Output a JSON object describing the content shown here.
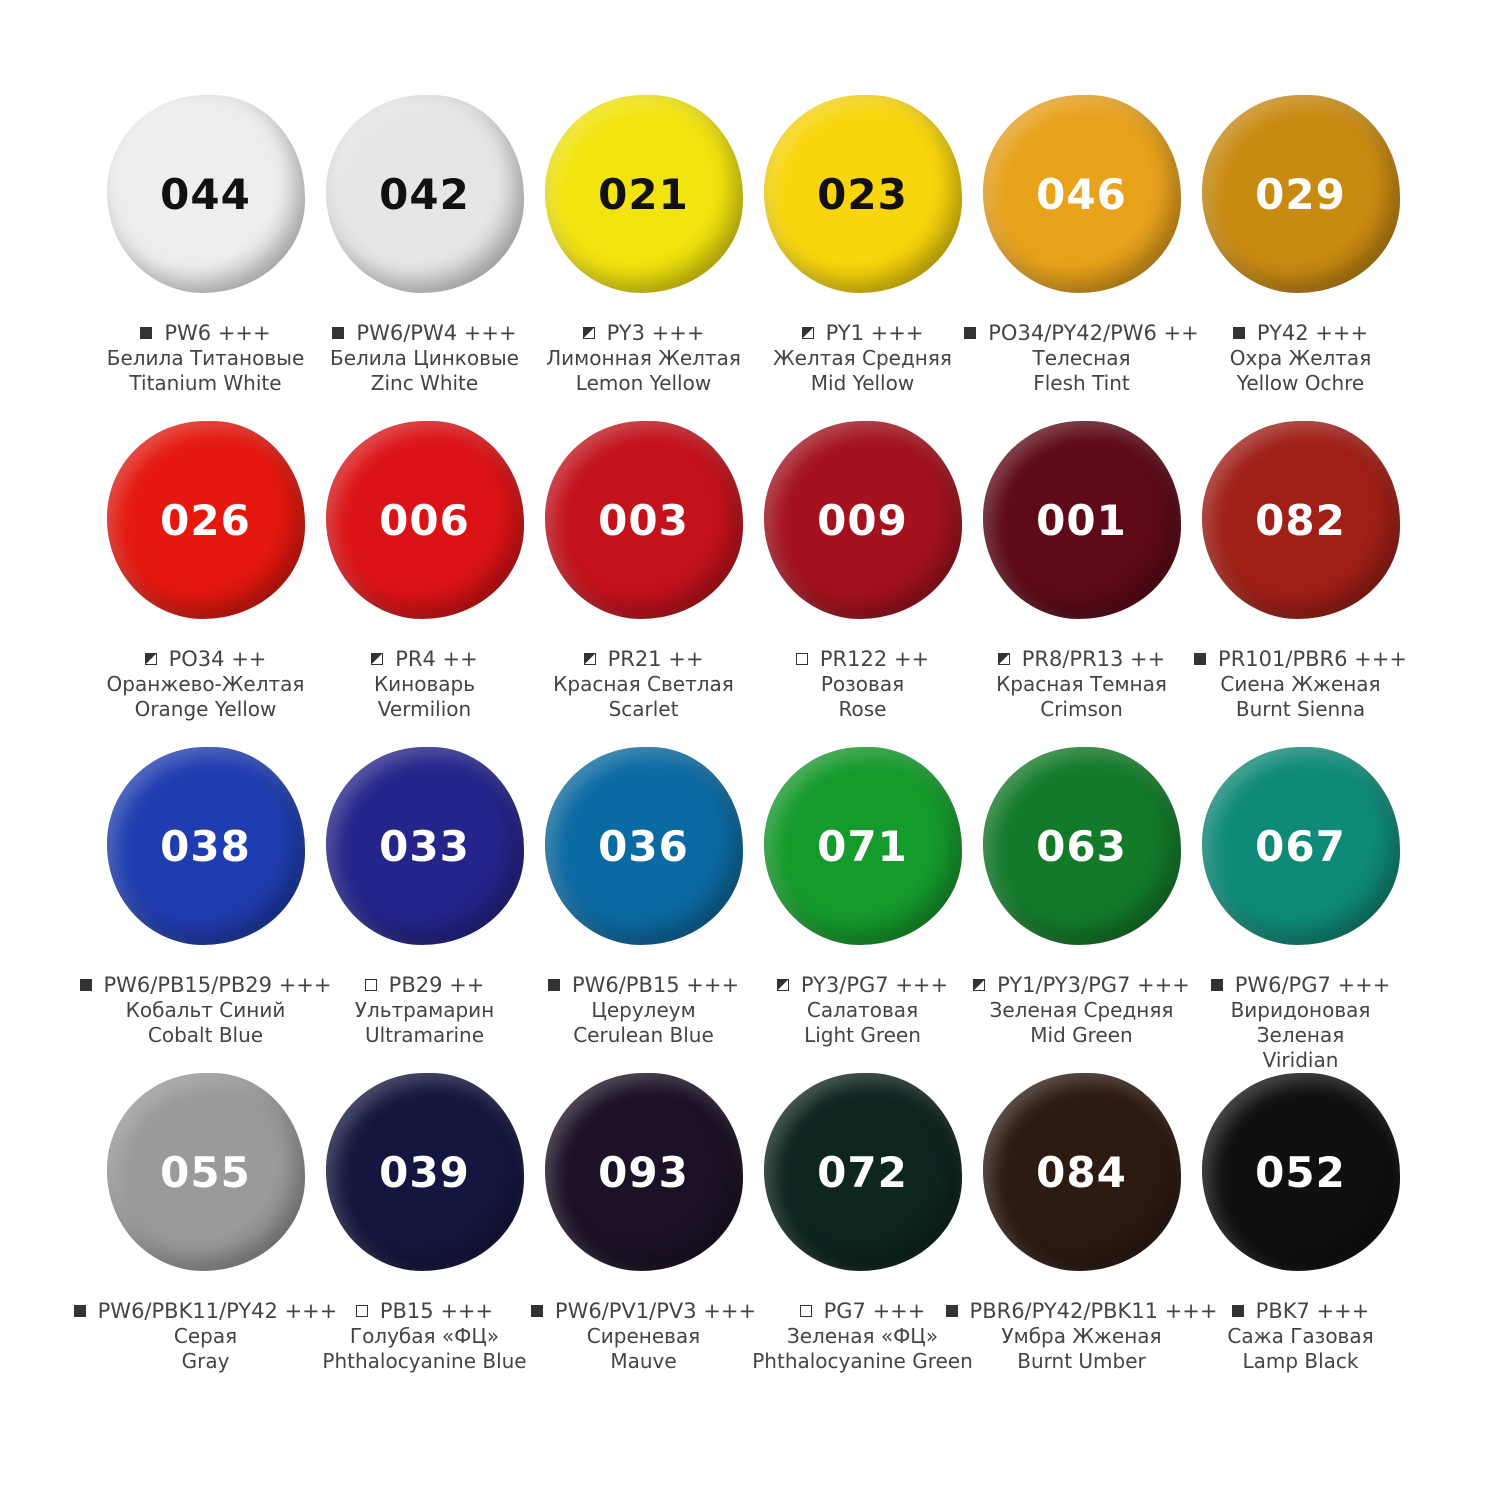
{
  "swatches": [
    {
      "code": "044",
      "pigment": "PW6 +++",
      "opacity": "opaque",
      "ru": "Белила Титановые",
      "en": "Titanium White",
      "color": "#eeeeee",
      "text_color": "#111111"
    },
    {
      "code": "042",
      "pigment": "PW6/PW4 +++",
      "opacity": "opaque",
      "ru": "Белила Цинковые",
      "en": "Zinc White",
      "color": "#e4e6e8",
      "text_color": "#111111"
    },
    {
      "code": "021",
      "pigment": "PY3 +++",
      "opacity": "semi",
      "ru": "Лимонная Желтая",
      "en": "Lemon Yellow",
      "color": "#f2e40e",
      "text_color": "#111111"
    },
    {
      "code": "023",
      "pigment": "PY1 +++",
      "opacity": "semi",
      "ru": "Желтая Средняя",
      "en": "Mid Yellow",
      "color": "#f8d50c",
      "text_color": "#111111"
    },
    {
      "code": "046",
      "pigment": "PO34/PY42/PW6 ++",
      "opacity": "opaque",
      "ru": "Телесная",
      "en": "Flesh Tint",
      "color": "#e8a21c",
      "text_color": "#ffffff"
    },
    {
      "code": "029",
      "pigment": "PY42 +++",
      "opacity": "opaque",
      "ru": "Охра Желтая",
      "en": "Yellow Ochre",
      "color": "#c98a12",
      "text_color": "#ffffff"
    },
    {
      "code": "026",
      "pigment": "PO34 ++",
      "opacity": "semi",
      "ru": "Оранжево-Желтая",
      "en": "Orange Yellow",
      "color": "#e4180f",
      "text_color": "#ffffff"
    },
    {
      "code": "006",
      "pigment": "PR4 ++",
      "opacity": "semi",
      "ru": "Киноварь",
      "en": "Vermilion",
      "color": "#dc1316",
      "text_color": "#ffffff"
    },
    {
      "code": "003",
      "pigment": "PR21 ++",
      "opacity": "semi",
      "ru": "Красная Светлая",
      "en": "Scarlet",
      "color": "#c3121b",
      "text_color": "#ffffff"
    },
    {
      "code": "009",
      "pigment": "PR122 ++",
      "opacity": "transparent",
      "ru": "Розовая",
      "en": "Rose",
      "color": "#a3121e",
      "text_color": "#ffffff"
    },
    {
      "code": "001",
      "pigment": "PR8/PR13 ++",
      "opacity": "semi",
      "ru": "Красная Темная",
      "en": "Crimson",
      "color": "#5e0a18",
      "text_color": "#ffffff"
    },
    {
      "code": "082",
      "pigment": "PR101/PBR6 +++",
      "opacity": "opaque",
      "ru": "Сиена Жженая",
      "en": "Burnt Sienna",
      "color": "#a01f16",
      "text_color": "#ffffff"
    },
    {
      "code": "038",
      "pigment": "PW6/PB15/PB29 +++",
      "opacity": "opaque",
      "ru": "Кобальт Синий",
      "en": "Cobalt Blue",
      "color": "#1f3db0",
      "text_color": "#ffffff"
    },
    {
      "code": "033",
      "pigment": "PB29 ++",
      "opacity": "transparent",
      "ru": "Ультрамарин",
      "en": "Ultramarine",
      "color": "#25248a",
      "text_color": "#ffffff"
    },
    {
      "code": "036",
      "pigment": "PW6/PB15 +++",
      "opacity": "opaque",
      "ru": "Церулеум",
      "en": "Cerulean Blue",
      "color": "#0c6aa2",
      "text_color": "#ffffff"
    },
    {
      "code": "071",
      "pigment": "PY3/PG7 +++",
      "opacity": "semi",
      "ru": "Салатовая",
      "en": "Light Green",
      "color": "#159a2c",
      "text_color": "#ffffff"
    },
    {
      "code": "063",
      "pigment": "PY1/PY3/PG7 +++",
      "opacity": "semi",
      "ru": "Зеленая Средняя",
      "en": "Mid Green",
      "color": "#137a2a",
      "text_color": "#ffffff"
    },
    {
      "code": "067",
      "pigment": "PW6/PG7 +++",
      "opacity": "opaque",
      "ru": "Виридоновая Зеленая",
      "en": "Viridian",
      "ru_lines": [
        "Виридоновая",
        "Зеленая"
      ],
      "color": "#0f8a78",
      "text_color": "#ffffff"
    },
    {
      "code": "055",
      "pigment": "PW6/PBK11/PY42 +++",
      "opacity": "opaque",
      "ru": "Серая",
      "en": "Gray",
      "color": "#9a9a9a",
      "text_color": "#ffffff"
    },
    {
      "code": "039",
      "pigment": "PB15 +++",
      "opacity": "transparent",
      "ru": "Голубая «ФЦ»",
      "en": "Phthalocyanine Blue",
      "color": "#15163f",
      "text_color": "#ffffff"
    },
    {
      "code": "093",
      "pigment": "PW6/PV1/PV3 +++",
      "opacity": "opaque",
      "ru": "Сиреневая",
      "en": "Mauve",
      "color": "#1c1126",
      "text_color": "#ffffff"
    },
    {
      "code": "072",
      "pigment": "PG7 +++",
      "opacity": "transparent",
      "ru": "Зеленая «ФЦ»",
      "en": "Phthalocyanine Green",
      "color": "#0f2520",
      "text_color": "#ffffff"
    },
    {
      "code": "084",
      "pigment": "PBR6/PY42/PBK11 +++",
      "opacity": "opaque",
      "ru": "Умбра Жженая",
      "en": "Burnt Umber",
      "color": "#2d1a12",
      "text_color": "#ffffff"
    },
    {
      "code": "052",
      "pigment": "PBK7 +++",
      "opacity": "opaque",
      "ru": "Сажа Газовая",
      "en": "Lamp Black",
      "color": "#101010",
      "text_color": "#ffffff"
    }
  ]
}
